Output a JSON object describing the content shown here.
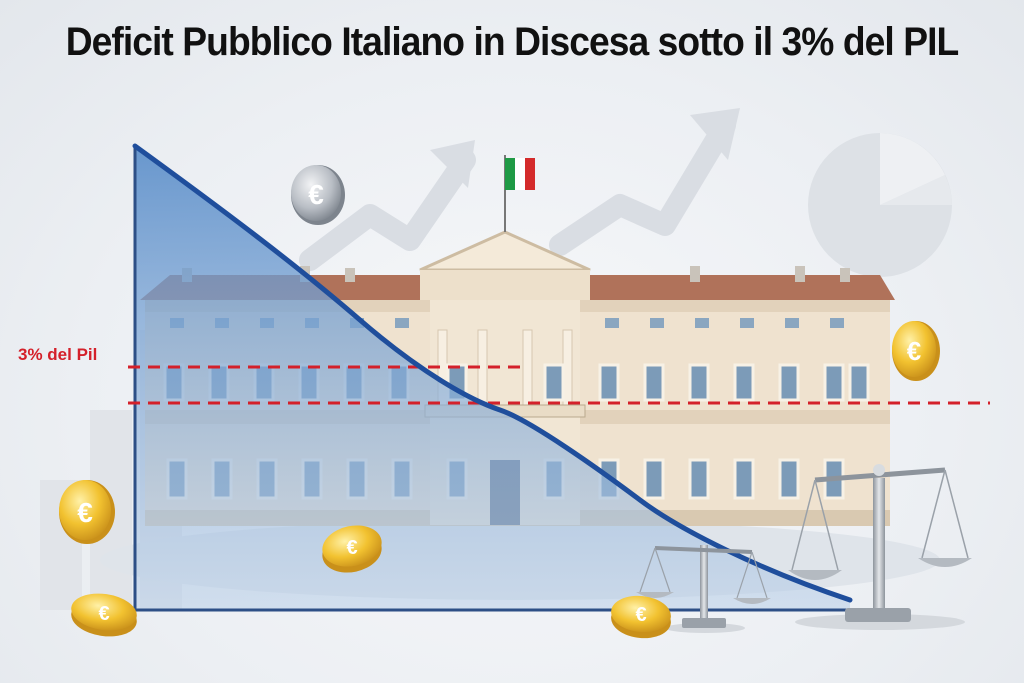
{
  "title": "Deficit Pubblico Italiano in Discesa sotto il 3% del PIL",
  "threshold_label": "3% del Pil",
  "coin_symbol": "€",
  "colors": {
    "curve": "#1f4e9c",
    "threshold": "#d4202a",
    "title": "#111111",
    "coin_gold": "#f2c230",
    "coin_silver": "#9aa0a8",
    "flag_green": "#1f9a45",
    "flag_white": "#ffffff",
    "flag_red": "#d42b2b"
  },
  "icons": [
    "euro-coin-icon",
    "italian-flag-icon",
    "balance-scale-icon",
    "trend-arrow-icon",
    "pie-chart-icon",
    "bar-chart-icon"
  ]
}
